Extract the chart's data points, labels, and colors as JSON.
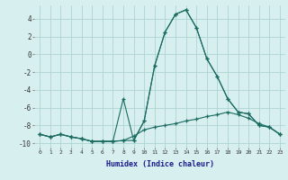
{
  "xlabel": "Humidex (Indice chaleur)",
  "bg_color": "#d7efef",
  "grid_color": "#aed4d4",
  "line_color": "#1a6b60",
  "xlim": [
    -0.5,
    23.5
  ],
  "ylim": [
    -10.5,
    5.5
  ],
  "yticks": [
    -10,
    -8,
    -6,
    -4,
    -2,
    0,
    2,
    4
  ],
  "xticks": [
    0,
    1,
    2,
    3,
    4,
    5,
    6,
    7,
    8,
    9,
    10,
    11,
    12,
    13,
    14,
    15,
    16,
    17,
    18,
    19,
    20,
    21,
    22,
    23
  ],
  "y_main": [
    -9.0,
    -9.3,
    -9.0,
    -9.3,
    -9.5,
    -9.8,
    -9.8,
    -9.8,
    -9.7,
    -9.7,
    -7.5,
    -1.3,
    2.5,
    4.5,
    5.0,
    3.0,
    -0.5,
    -2.5,
    -5.0,
    -6.5,
    -6.7,
    -8.0,
    -8.2,
    -9.0
  ],
  "y_spike": [
    -9.0,
    -9.3,
    -9.0,
    -9.3,
    -9.5,
    -9.8,
    -9.8,
    -9.8,
    -5.0,
    -9.7,
    -7.5,
    -1.3,
    2.5,
    4.5,
    5.0,
    3.0,
    -0.5,
    -2.5,
    -5.0,
    -6.5,
    -6.7,
    -8.0,
    -8.2,
    -9.0
  ],
  "y_flat": [
    -9.0,
    -9.3,
    -9.0,
    -9.3,
    -9.5,
    -9.8,
    -9.8,
    -9.8,
    -9.7,
    -9.2,
    -8.5,
    -8.2,
    -8.0,
    -7.8,
    -7.5,
    -7.3,
    -7.0,
    -6.8,
    -6.5,
    -6.8,
    -7.2,
    -7.8,
    -8.2,
    -9.0
  ]
}
